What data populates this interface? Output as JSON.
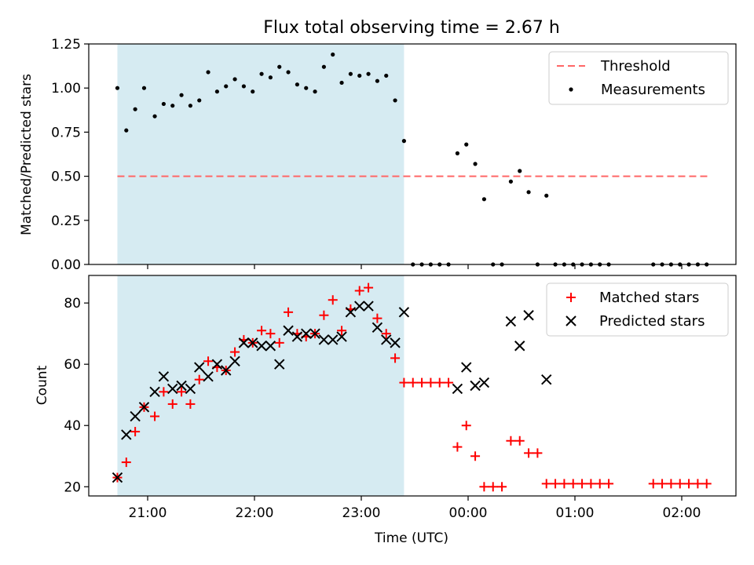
{
  "chart_data": {
    "type": "scatter",
    "title": "Flux total observing time = 2.67 h",
    "xlabel": "Time (UTC)",
    "x_ticks": [
      "21:00",
      "22:00",
      "23:00",
      "00:00",
      "01:00",
      "02:00"
    ],
    "shaded_interval": {
      "start": "20:43",
      "end": "23:24",
      "color": "#add8e6"
    },
    "panels": [
      {
        "id": "ratio",
        "ylabel": "Matched/Predicted stars",
        "ylim": [
          0,
          1.25
        ],
        "y_ticks": [
          "0.00",
          "0.25",
          "0.50",
          "0.75",
          "1.00",
          "1.25"
        ],
        "legend": "upper-right",
        "threshold": {
          "name": "Threshold",
          "y": 0.5,
          "x_start": "20:43",
          "x_end": "02:15",
          "color": "#ff6666"
        },
        "series": [
          {
            "name": "Measurements",
            "color": "#000000",
            "marker": "dot",
            "x": [
              "20:43",
              "20:48",
              "20:53",
              "20:58",
              "21:04",
              "21:09",
              "21:14",
              "21:19",
              "21:24",
              "21:29",
              "21:34",
              "21:39",
              "21:44",
              "21:49",
              "21:54",
              "21:59",
              "22:04",
              "22:09",
              "22:14",
              "22:19",
              "22:24",
              "22:29",
              "22:34",
              "22:39",
              "22:44",
              "22:49",
              "22:54",
              "22:59",
              "23:04",
              "23:09",
              "23:14",
              "23:19",
              "23:24",
              "23:29",
              "23:34",
              "23:39",
              "23:44",
              "23:49",
              "23:54",
              "23:59",
              "00:04",
              "00:09",
              "00:14",
              "00:19",
              "00:24",
              "00:29",
              "00:34",
              "00:39",
              "00:44",
              "00:49",
              "00:54",
              "00:59",
              "01:04",
              "01:09",
              "01:14",
              "01:19",
              "01:44",
              "01:49",
              "01:54",
              "01:59",
              "02:04",
              "02:09",
              "02:14"
            ],
            "y": [
              1.0,
              0.76,
              0.88,
              1.0,
              0.84,
              0.91,
              0.9,
              0.96,
              0.9,
              0.93,
              1.09,
              0.98,
              1.01,
              1.05,
              1.01,
              0.98,
              1.08,
              1.06,
              1.12,
              1.09,
              1.02,
              1.0,
              0.98,
              1.12,
              1.19,
              1.03,
              1.08,
              1.07,
              1.08,
              1.04,
              1.07,
              0.93,
              0.7,
              0.0,
              0.0,
              0.0,
              0.0,
              0.0,
              0.63,
              0.68,
              0.57,
              0.37,
              0.0,
              0.0,
              0.47,
              0.53,
              0.41,
              0.0,
              0.39,
              0.0,
              0.0,
              0.0,
              0.0,
              0.0,
              0.0,
              0.0,
              0.0,
              0.0,
              0.0,
              0.0,
              0.0,
              0.0,
              0.0
            ]
          }
        ]
      },
      {
        "id": "counts",
        "ylabel": "Count",
        "ylim": [
          17,
          89
        ],
        "y_ticks": [
          "20",
          "40",
          "60",
          "80"
        ],
        "legend": "upper-right",
        "series": [
          {
            "name": "Matched stars",
            "color": "#ff0000",
            "marker": "plus",
            "x": [
              "20:43",
              "20:48",
              "20:53",
              "20:58",
              "21:04",
              "21:09",
              "21:14",
              "21:19",
              "21:24",
              "21:29",
              "21:34",
              "21:39",
              "21:44",
              "21:49",
              "21:54",
              "21:59",
              "22:04",
              "22:09",
              "22:14",
              "22:19",
              "22:24",
              "22:29",
              "22:34",
              "22:39",
              "22:44",
              "22:49",
              "22:54",
              "22:59",
              "23:04",
              "23:09",
              "23:14",
              "23:19",
              "23:24",
              "23:29",
              "23:34",
              "23:39",
              "23:44",
              "23:49",
              "23:54",
              "23:59",
              "00:04",
              "00:09",
              "00:14",
              "00:19",
              "00:24",
              "00:29",
              "00:34",
              "00:39",
              "00:44",
              "00:49",
              "00:54",
              "00:59",
              "01:04",
              "01:09",
              "01:14",
              "01:19",
              "01:44",
              "01:49",
              "01:54",
              "01:59",
              "02:04",
              "02:09",
              "02:14"
            ],
            "y": [
              23,
              28,
              38,
              46,
              43,
              51,
              47,
              51,
              47,
              55,
              61,
              59,
              58,
              64,
              68,
              67,
              71,
              70,
              67,
              77,
              70,
              69,
              70,
              76,
              81,
              71,
              78,
              84,
              85,
              75,
              70,
              62,
              54,
              54,
              54,
              54,
              54,
              54,
              33,
              40,
              30,
              20,
              20,
              20,
              35,
              35,
              31,
              31,
              21,
              21,
              21,
              21,
              21,
              21,
              21,
              21,
              21,
              21,
              21,
              21,
              21,
              21,
              21
            ]
          },
          {
            "name": "Predicted stars",
            "color": "#000000",
            "marker": "x",
            "x": [
              "20:43",
              "20:48",
              "20:53",
              "20:58",
              "21:04",
              "21:09",
              "21:14",
              "21:19",
              "21:24",
              "21:29",
              "21:34",
              "21:39",
              "21:44",
              "21:49",
              "21:54",
              "21:59",
              "22:04",
              "22:09",
              "22:14",
              "22:19",
              "22:24",
              "22:29",
              "22:34",
              "22:39",
              "22:44",
              "22:49",
              "22:54",
              "22:59",
              "23:04",
              "23:09",
              "23:14",
              "23:19",
              "23:24",
              "23:54",
              "23:59",
              "00:04",
              "00:09",
              "00:24",
              "00:29",
              "00:34",
              "00:44"
            ],
            "y": [
              23,
              37,
              43,
              46,
              51,
              56,
              52,
              53,
              52,
              59,
              56,
              60,
              58,
              61,
              67,
              67,
              66,
              66,
              60,
              71,
              69,
              70,
              70,
              68,
              68,
              69,
              77,
              79,
              79,
              72,
              68,
              67,
              77,
              52,
              59,
              53,
              54,
              74,
              66,
              76,
              55
            ]
          }
        ]
      }
    ]
  }
}
